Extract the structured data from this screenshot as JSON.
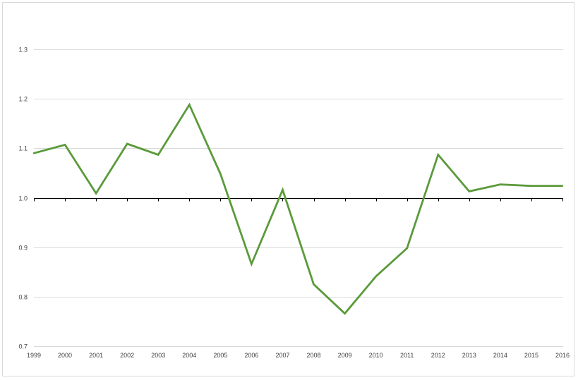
{
  "chart_data": {
    "type": "line",
    "categories": [
      "1999",
      "2000",
      "2001",
      "2002",
      "2003",
      "2004",
      "2005",
      "2006",
      "2007",
      "2008",
      "2009",
      "2010",
      "2011",
      "2012",
      "2013",
      "2014",
      "2015",
      "2016"
    ],
    "series": [
      {
        "values": [
          1.09,
          1.107,
          1.009,
          1.109,
          1.087,
          1.188,
          1.048,
          0.866,
          1.016,
          0.825,
          0.766,
          0.841,
          0.898,
          1.087,
          1.013,
          1.027,
          1.024,
          1.024
        ],
        "color": "#5b9a3b"
      }
    ],
    "ylim": [
      0.7,
      1.3
    ],
    "yticks": [
      "0.7",
      "0.8",
      "0.9",
      "1.0",
      "1.1",
      "1.2",
      "1.3"
    ],
    "baseline": 1.0,
    "grid": true,
    "gridColor": "#d9d9d9",
    "axisColor": "#000000",
    "title": "",
    "xlabel": "",
    "ylabel": ""
  }
}
